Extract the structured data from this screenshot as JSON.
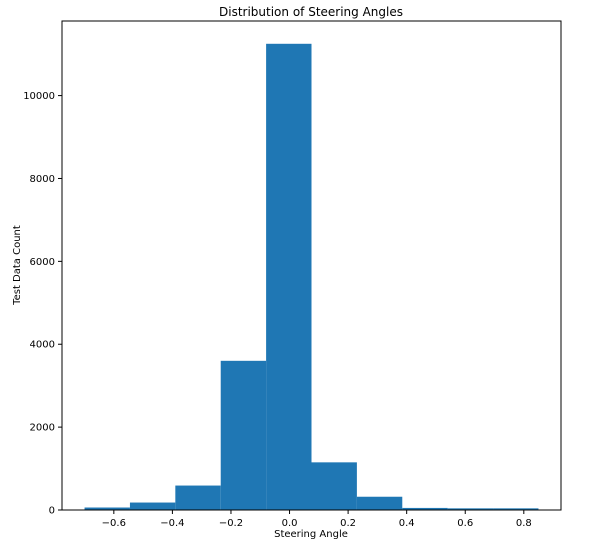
{
  "chart_data": {
    "type": "bar",
    "title": "Distribution of Steering Angles",
    "xlabel": "Steering Angle",
    "ylabel": "Test Data Count",
    "bin_edges": [
      -0.7,
      -0.545,
      -0.39,
      -0.235,
      -0.08,
      0.075,
      0.23,
      0.385,
      0.54,
      0.695,
      0.85
    ],
    "values": [
      60,
      180,
      590,
      3600,
      11250,
      1150,
      320,
      50,
      40,
      40
    ],
    "xlim": [
      -0.777,
      0.927
    ],
    "ylim": [
      0,
      11800
    ],
    "x_ticks": [
      -0.6,
      -0.4,
      -0.2,
      0.0,
      0.2,
      0.4,
      0.6,
      0.8
    ],
    "x_tick_labels": [
      "−0.6",
      "−0.4",
      "−0.2",
      "0.0",
      "0.2",
      "0.4",
      "0.6",
      "0.8"
    ],
    "y_ticks": [
      0,
      2000,
      4000,
      6000,
      8000,
      10000
    ],
    "y_tick_labels": [
      "0",
      "2000",
      "4000",
      "6000",
      "8000",
      "10000"
    ],
    "grid": false,
    "legend": "none",
    "bar_color": "#1f77b4"
  }
}
